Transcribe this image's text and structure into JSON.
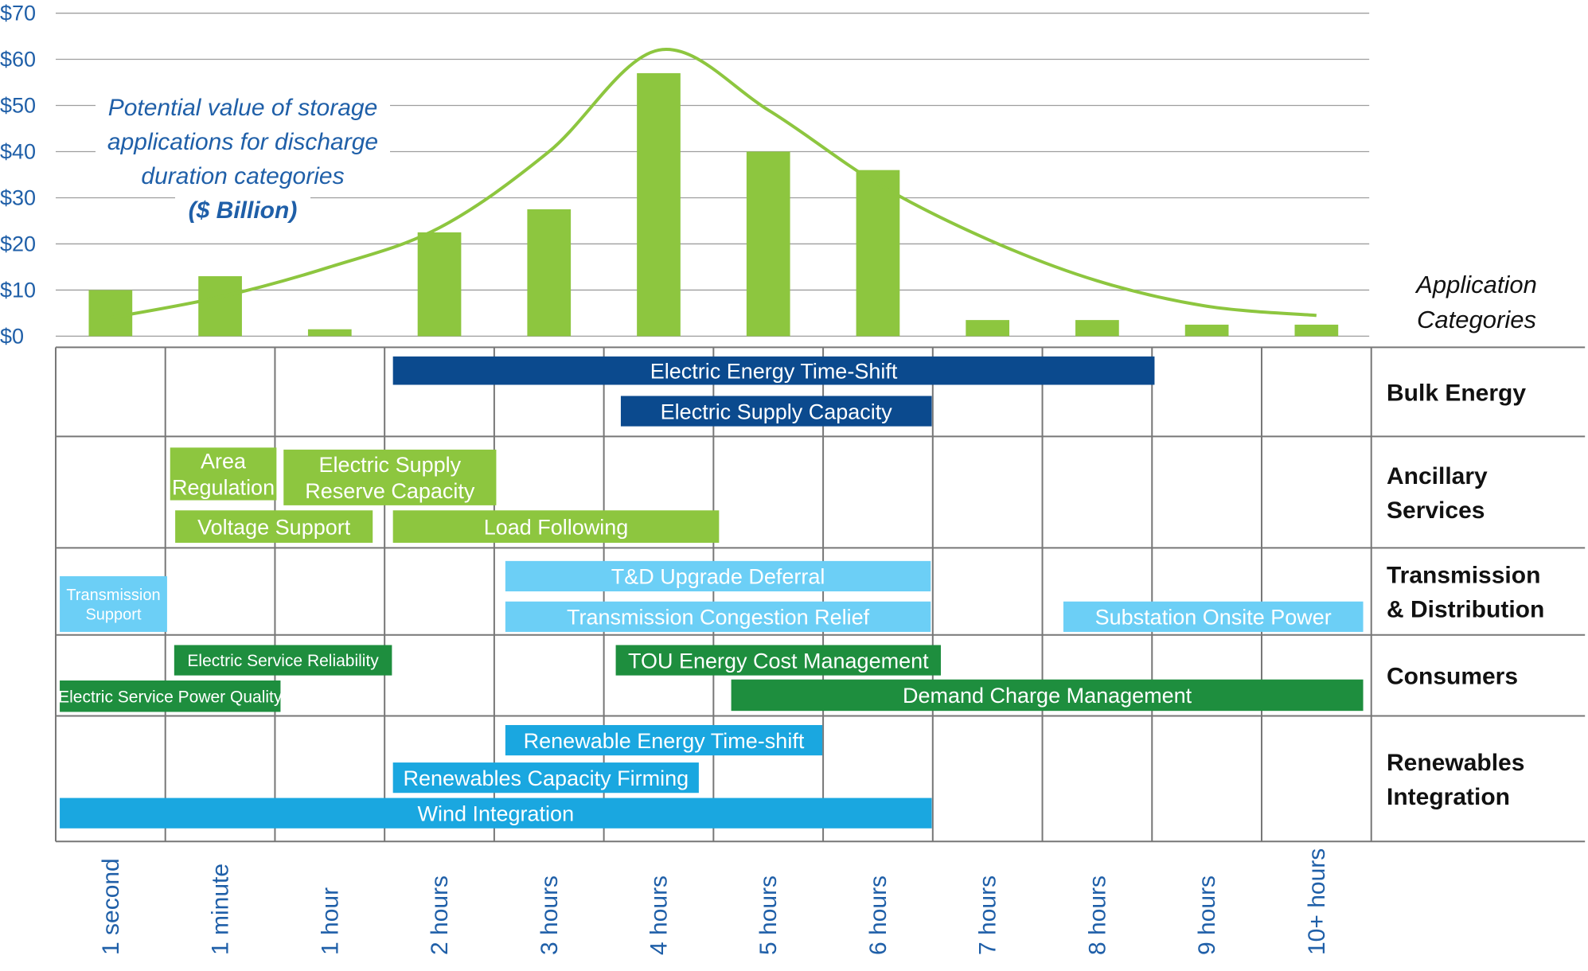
{
  "chart_data": {
    "type": "bar",
    "annotation": {
      "lines": [
        "Potential value of storage",
        "applications for discharge",
        "duration categories"
      ],
      "units": "($ Billion)"
    },
    "y_tick_labels": [
      "$0",
      "$10",
      "$20",
      "$30",
      "$40",
      "$50",
      "$60",
      "$70"
    ],
    "ylim": [
      0,
      70
    ],
    "grid": true,
    "categories": [
      "1 second",
      "1 minute",
      "1 hour",
      "2 hours",
      "3 hours",
      "4 hours",
      "5 hours",
      "6 hours",
      "7 hours",
      "8 hours",
      "9 hours",
      "10+ hours"
    ],
    "values": [
      10,
      13,
      1.5,
      22.5,
      27.5,
      57,
      40,
      36,
      3.5,
      3.5,
      2.5,
      2.5
    ],
    "curve": [
      4,
      8.5,
      15,
      23.5,
      40,
      62,
      49,
      33,
      21,
      12,
      6.5,
      4.5
    ],
    "categories_header": "Application Categories",
    "groups": [
      {
        "name": "Bulk Energy",
        "apps": [
          {
            "label": "Electric Energy Time-Shift",
            "start": 3,
            "end": 10,
            "color": "#0B4A8E"
          },
          {
            "label": "Electric Supply Capacity",
            "start": 5,
            "end": 8,
            "color": "#0B4A8E"
          }
        ]
      },
      {
        "name": "Ancillary Services",
        "apps": [
          {
            "label": "Area Regulation",
            "start": 1,
            "end": 2,
            "color": "#8DC63F"
          },
          {
            "label": "Electric Supply Reserve Capacity",
            "start": 2,
            "end": 4,
            "color": "#8DC63F"
          },
          {
            "label": "Voltage Support",
            "start": 1,
            "end": 3,
            "color": "#8DC63F"
          },
          {
            "label": "Load Following",
            "start": 3,
            "end": 6,
            "color": "#8DC63F"
          }
        ]
      },
      {
        "name": "Transmission & Distribution",
        "apps": [
          {
            "label": "Transmission Support",
            "start": 0,
            "end": 1,
            "color": "#6CCFF6"
          },
          {
            "label": "T&D Upgrade Deferral",
            "start": 4,
            "end": 8,
            "color": "#6CCFF6"
          },
          {
            "label": "Transmission Congestion Relief",
            "start": 4,
            "end": 8,
            "color": "#6CCFF6"
          },
          {
            "label": "Substation Onsite Power",
            "start": 9,
            "end": 11,
            "color": "#6CCFF6"
          }
        ]
      },
      {
        "name": "Consumers",
        "apps": [
          {
            "label": "Electric Service Reliability",
            "start": 1,
            "end": 3,
            "color": "#1E8E3E"
          },
          {
            "label": "TOU Energy Cost Management",
            "start": 5,
            "end": 8,
            "color": "#1E8E3E"
          },
          {
            "label": "Electric Service Power Quality",
            "start": 0,
            "end": 2,
            "color": "#1E8E3E"
          },
          {
            "label": "Demand Charge Management",
            "start": 6,
            "end": 11,
            "color": "#1E8E3E"
          }
        ]
      },
      {
        "name": "Renewables Integration",
        "apps": [
          {
            "label": "Renewable Energy Time-shift",
            "start": 4,
            "end": 7,
            "color": "#1AA7E0"
          },
          {
            "label": "Renewables Capacity Firming",
            "start": 3,
            "end": 6,
            "color": "#1AA7E0"
          },
          {
            "label": "Wind Integration",
            "start": 0,
            "end": 8,
            "color": "#1AA7E0"
          }
        ]
      }
    ],
    "colors": {
      "bar": "#8DC63F",
      "curve": "#8DC63F",
      "grid": "#9E9E9E",
      "annotation": "#1F5FA8",
      "axis_text": "#1F5FA8",
      "category_text": "#111111"
    }
  }
}
